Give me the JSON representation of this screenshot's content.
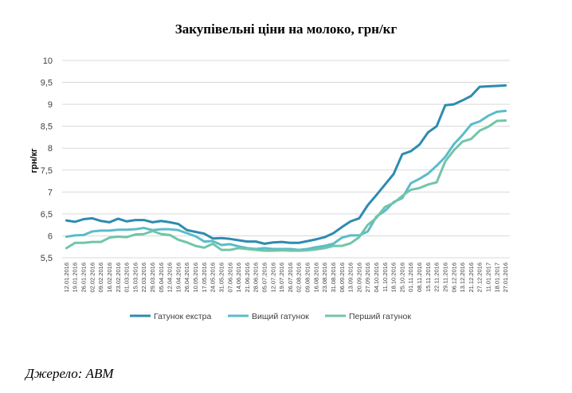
{
  "chart_data": {
    "type": "line",
    "title": "Закупівельні ціни на молоко, грн/кг",
    "ylabel": "грн/кг",
    "xlabel": "",
    "ylim": [
      5.5,
      10
    ],
    "yticks": [
      "5,5",
      "6",
      "6,5",
      "7",
      "7,5",
      "8",
      "8,5",
      "9",
      "9,5",
      "10"
    ],
    "grid": "horizontal",
    "legend": "bottom",
    "categories": [
      "12.01.2016",
      "19.01.2016",
      "26.01.2016",
      "02.02.2016",
      "09.02.2016",
      "16.02.2016",
      "23.02.2016",
      "01.03.2016",
      "15.03.2016",
      "22.03.2016",
      "29.03.2016",
      "05.04.2016",
      "12.04.2016",
      "19.04.2016",
      "26.04.2016",
      "10.05.2016",
      "17.05.2016",
      "24.05.2016",
      "31.05.2016",
      "07.06.2016",
      "14.06.2016",
      "21.06.2016",
      "28.06.2016",
      "05.07.2016",
      "12.07.2016",
      "19.07.2016",
      "26.07.2016",
      "02.08.2016",
      "09.08.2016",
      "16.08.2016",
      "23.08.2016",
      "31.08.2016",
      "06.09.2016",
      "13.09.2016",
      "20.09.2016",
      "27.09.2016",
      "04.10.2016",
      "11.10.2016",
      "18.10.2016",
      "25.10.2016",
      "01.11.2016",
      "08.11.2016",
      "15.11.2016",
      "22.11.2016",
      "29.11.2016",
      "06.12.2016",
      "13.12.2016",
      "21.12.2016",
      "27.12.2016",
      "11.01.2017",
      "18.01.2017",
      "27.01.2016"
    ],
    "series": [
      {
        "name": "Гатунок екстра",
        "color": "#2e8bb0",
        "values": [
          6.35,
          6.32,
          6.38,
          6.4,
          6.34,
          6.31,
          6.39,
          6.33,
          6.36,
          6.36,
          6.31,
          6.34,
          6.31,
          6.27,
          6.13,
          6.09,
          6.05,
          5.94,
          5.95,
          5.93,
          5.9,
          5.87,
          5.87,
          5.82,
          5.85,
          5.86,
          5.84,
          5.84,
          5.88,
          5.92,
          5.97,
          6.06,
          6.2,
          6.33,
          6.4,
          6.7,
          6.93,
          7.17,
          7.41,
          7.86,
          7.93,
          8.08,
          8.36,
          8.5,
          8.98,
          9.0,
          9.09,
          9.19,
          9.4,
          9.41,
          9.42,
          9.43
        ]
      },
      {
        "name": "Вищий гатунок",
        "color": "#5bbcc8",
        "values": [
          5.98,
          6.01,
          6.02,
          6.1,
          6.12,
          6.12,
          6.14,
          6.14,
          6.15,
          6.18,
          6.13,
          6.15,
          6.15,
          6.13,
          6.06,
          5.99,
          5.87,
          5.88,
          5.79,
          5.81,
          5.76,
          5.72,
          5.7,
          5.72,
          5.7,
          5.7,
          5.7,
          5.68,
          5.7,
          5.74,
          5.77,
          5.82,
          5.96,
          6.01,
          6.01,
          6.1,
          6.44,
          6.57,
          6.77,
          6.86,
          7.2,
          7.3,
          7.42,
          7.6,
          7.8,
          8.09,
          8.3,
          8.54,
          8.61,
          8.74,
          8.83,
          8.85
        ]
      },
      {
        "name": "Перший гатунок",
        "color": "#72c5a8",
        "values": [
          5.72,
          5.84,
          5.84,
          5.86,
          5.86,
          5.96,
          5.98,
          5.97,
          6.03,
          6.04,
          6.11,
          6.04,
          6.02,
          5.91,
          5.85,
          5.77,
          5.73,
          5.82,
          5.68,
          5.68,
          5.72,
          5.7,
          5.68,
          5.66,
          5.66,
          5.67,
          5.66,
          5.66,
          5.67,
          5.69,
          5.72,
          5.77,
          5.77,
          5.83,
          5.97,
          6.25,
          6.41,
          6.66,
          6.75,
          6.91,
          7.05,
          7.09,
          7.17,
          7.22,
          7.7,
          7.95,
          8.15,
          8.21,
          8.4,
          8.49,
          8.62,
          8.63
        ]
      }
    ]
  },
  "source_text": "Джерело: АВМ"
}
